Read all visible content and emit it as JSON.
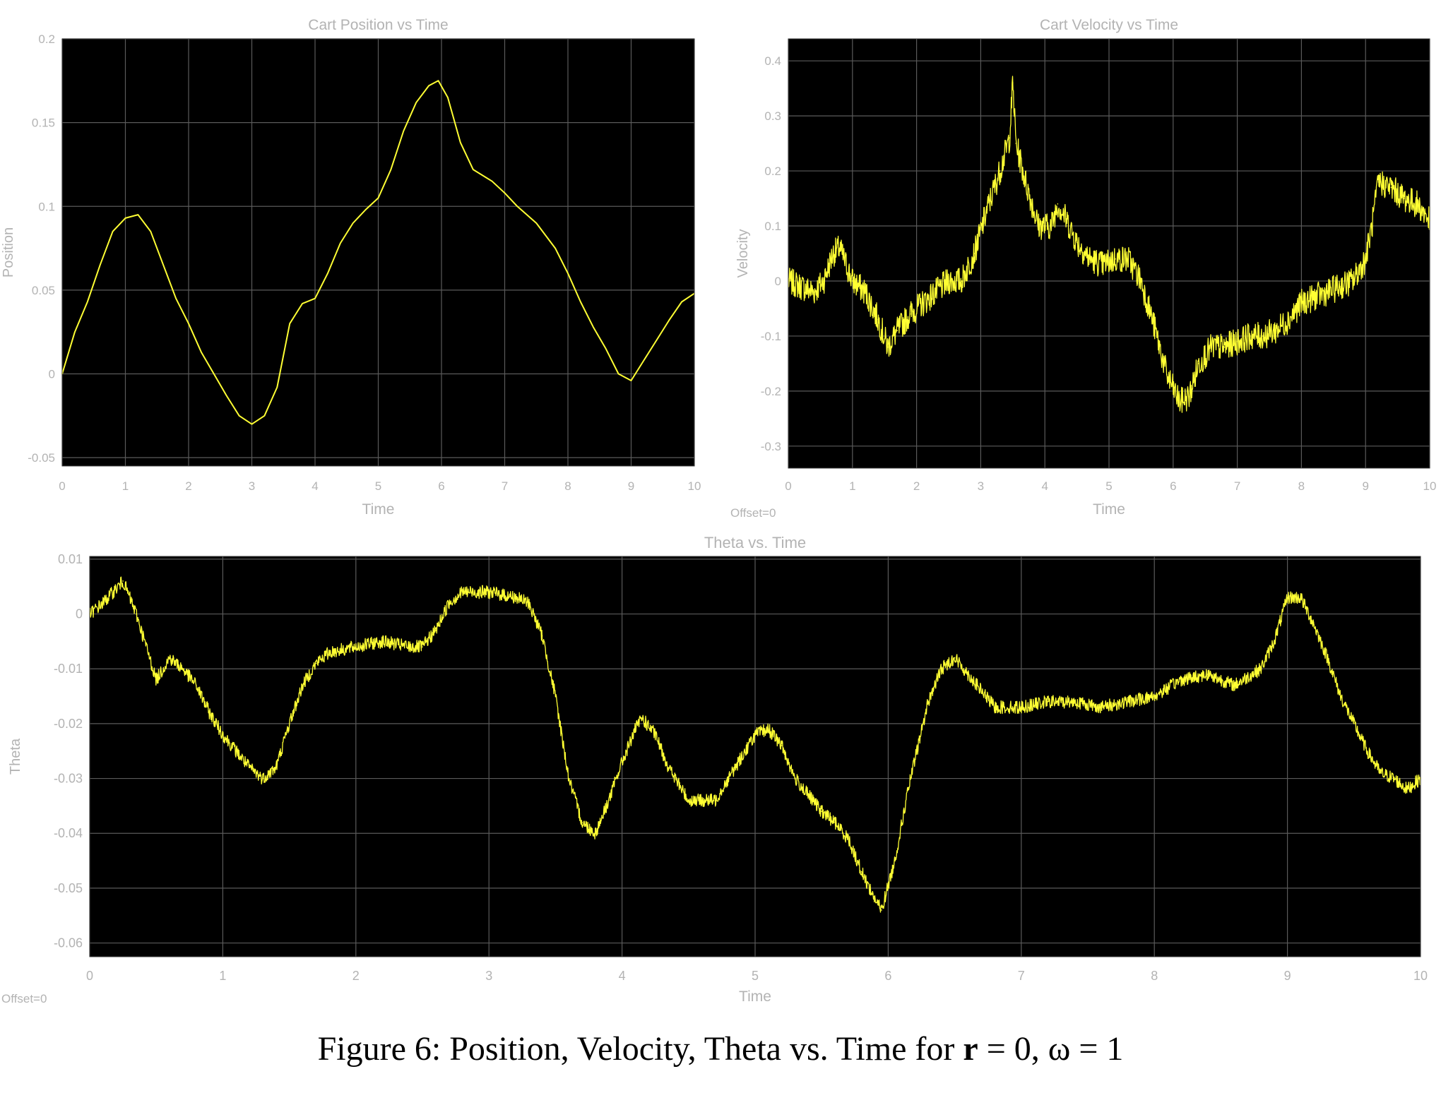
{
  "figure": {
    "caption_prefix": "Figure 6: Position, Velocity, Theta vs. Time for ",
    "caption_r": "r",
    "caption_suffix": " = 0, ω = 1"
  },
  "colors": {
    "plot_bg": "#000000",
    "grid": "#5a5a5a",
    "trace": "#ffff33",
    "label": "#b3b3b3"
  },
  "chart_data": [
    {
      "type": "line",
      "title": "Cart Position vs Time",
      "xlabel": "Time",
      "ylabel": "Position",
      "offset_label": "",
      "xlim": [
        0,
        10
      ],
      "ylim": [
        -0.055,
        0.2
      ],
      "xticks": [
        0,
        1,
        2,
        3,
        4,
        5,
        6,
        7,
        8,
        9,
        10
      ],
      "yticks": [
        -0.05,
        0,
        0.05,
        0.1,
        0.15,
        0.2
      ],
      "ytick_labels": [
        "-0.05",
        "0",
        "0.05",
        "0.1",
        "0.15",
        "0.2"
      ],
      "grid": true,
      "series": [
        {
          "x": [
            0,
            0.2,
            0.4,
            0.6,
            0.8,
            1.0,
            1.2,
            1.4,
            1.6,
            1.8,
            2.0,
            2.2,
            2.4,
            2.6,
            2.8,
            3.0,
            3.2,
            3.4,
            3.6,
            3.8,
            4.0,
            4.2,
            4.4,
            4.6,
            4.8,
            5.0,
            5.2,
            5.4,
            5.6,
            5.8,
            5.95,
            6.1,
            6.3,
            6.5,
            6.8,
            7.0,
            7.2,
            7.5,
            7.8,
            8.0,
            8.2,
            8.4,
            8.6,
            8.8,
            9.0,
            9.2,
            9.4,
            9.6,
            9.8,
            10.0
          ],
          "y": [
            0,
            0.025,
            0.043,
            0.065,
            0.085,
            0.093,
            0.095,
            0.085,
            0.065,
            0.045,
            0.03,
            0.013,
            0,
            -0.013,
            -0.025,
            -0.03,
            -0.025,
            -0.008,
            0.03,
            0.042,
            0.045,
            0.06,
            0.078,
            0.09,
            0.098,
            0.105,
            0.122,
            0.145,
            0.162,
            0.172,
            0.175,
            0.165,
            0.138,
            0.122,
            0.115,
            0.108,
            0.1,
            0.09,
            0.075,
            0.06,
            0.043,
            0.028,
            0.015,
            0,
            -0.004,
            0.008,
            0.02,
            0.032,
            0.043,
            0.048
          ]
        }
      ]
    },
    {
      "type": "line",
      "title": "Cart Velocity vs Time",
      "xlabel": "Time",
      "ylabel": "Velocity",
      "offset_label": "Offset=0",
      "xlim": [
        0,
        10
      ],
      "ylim": [
        -0.34,
        0.44
      ],
      "xticks": [
        0,
        1,
        2,
        3,
        4,
        5,
        6,
        7,
        8,
        9,
        10
      ],
      "yticks": [
        -0.3,
        -0.2,
        -0.1,
        0,
        0.1,
        0.2,
        0.3,
        0.4
      ],
      "ytick_labels": [
        "-0.3",
        "-0.2",
        "-0.1",
        "0",
        "0.1",
        "0.2",
        "0.3",
        "0.4"
      ],
      "grid": true,
      "series": [
        {
          "x": [
            0,
            0.2,
            0.4,
            0.55,
            0.7,
            0.8,
            1.0,
            1.2,
            1.4,
            1.55,
            1.7,
            1.9,
            2.1,
            2.3,
            2.5,
            2.7,
            2.9,
            3.1,
            3.3,
            3.45,
            3.5,
            3.55,
            3.7,
            3.9,
            4.1,
            4.2,
            4.3,
            4.5,
            4.7,
            4.9,
            5.1,
            5.3,
            5.5,
            5.7,
            5.9,
            6.1,
            6.25,
            6.4,
            6.6,
            6.8,
            7.0,
            7.2,
            7.4,
            7.6,
            7.8,
            8.0,
            8.2,
            8.4,
            8.6,
            8.8,
            9.0,
            9.1,
            9.2,
            9.4,
            9.6,
            9.8,
            10.0
          ],
          "y": [
            0.0,
            -0.01,
            -0.02,
            0.0,
            0.05,
            0.06,
            0.0,
            -0.02,
            -0.07,
            -0.12,
            -0.09,
            -0.06,
            -0.04,
            -0.02,
            0.0,
            0.0,
            0.05,
            0.13,
            0.2,
            0.26,
            0.36,
            0.25,
            0.18,
            0.1,
            0.1,
            0.14,
            0.12,
            0.07,
            0.04,
            0.03,
            0.04,
            0.04,
            0.0,
            -0.08,
            -0.17,
            -0.22,
            -0.21,
            -0.15,
            -0.12,
            -0.12,
            -0.11,
            -0.1,
            -0.1,
            -0.09,
            -0.07,
            -0.04,
            -0.03,
            -0.02,
            -0.01,
            0.0,
            0.04,
            0.1,
            0.18,
            0.17,
            0.15,
            0.14,
            0.11
          ],
          "noise": 0.025
        }
      ]
    },
    {
      "type": "line",
      "title": "Theta vs. Time",
      "xlabel": "Time",
      "ylabel": "Theta",
      "offset_label": "Offset=0",
      "xlim": [
        0,
        10
      ],
      "ylim": [
        -0.0625,
        0.0105
      ],
      "xticks": [
        0,
        1,
        2,
        3,
        4,
        5,
        6,
        7,
        8,
        9,
        10
      ],
      "yticks": [
        -0.06,
        -0.05,
        -0.04,
        -0.03,
        -0.02,
        -0.01,
        0,
        0.01
      ],
      "ytick_labels": [
        "-0.06",
        "-0.05",
        "-0.04",
        "-0.03",
        "-0.02",
        "-0.01",
        "0",
        "0.01"
      ],
      "grid": true,
      "series": [
        {
          "x": [
            0,
            0.1,
            0.25,
            0.35,
            0.45,
            0.5,
            0.6,
            0.7,
            0.8,
            0.9,
            1.0,
            1.1,
            1.2,
            1.3,
            1.4,
            1.5,
            1.6,
            1.7,
            1.8,
            2.0,
            2.2,
            2.4,
            2.5,
            2.6,
            2.7,
            2.8,
            3.0,
            3.2,
            3.3,
            3.4,
            3.5,
            3.6,
            3.7,
            3.8,
            3.9,
            4.0,
            4.1,
            4.15,
            4.25,
            4.35,
            4.5,
            4.7,
            4.8,
            4.9,
            5.0,
            5.1,
            5.2,
            5.3,
            5.5,
            5.6,
            5.7,
            5.8,
            5.9,
            5.95,
            6.05,
            6.15,
            6.3,
            6.4,
            6.5,
            6.6,
            6.8,
            7.0,
            7.2,
            7.4,
            7.6,
            7.8,
            8.0,
            8.2,
            8.4,
            8.6,
            8.8,
            8.9,
            9.0,
            9.1,
            9.2,
            9.3,
            9.4,
            9.5,
            9.6,
            9.7,
            9.8,
            9.9,
            10.0
          ],
          "y": [
            0,
            0.002,
            0.006,
            0.0,
            -0.008,
            -0.012,
            -0.008,
            -0.01,
            -0.013,
            -0.018,
            -0.022,
            -0.025,
            -0.028,
            -0.03,
            -0.028,
            -0.02,
            -0.013,
            -0.009,
            -0.007,
            -0.006,
            -0.005,
            -0.006,
            -0.006,
            -0.003,
            0.002,
            0.004,
            0.004,
            0.003,
            0.002,
            -0.004,
            -0.015,
            -0.03,
            -0.038,
            -0.04,
            -0.034,
            -0.027,
            -0.021,
            -0.019,
            -0.022,
            -0.028,
            -0.034,
            -0.034,
            -0.03,
            -0.026,
            -0.022,
            -0.021,
            -0.024,
            -0.03,
            -0.036,
            -0.038,
            -0.041,
            -0.047,
            -0.052,
            -0.054,
            -0.045,
            -0.032,
            -0.016,
            -0.01,
            -0.008,
            -0.011,
            -0.017,
            -0.017,
            -0.016,
            -0.016,
            -0.017,
            -0.016,
            -0.015,
            -0.012,
            -0.011,
            -0.013,
            -0.01,
            -0.005,
            0.003,
            0.003,
            -0.002,
            -0.008,
            -0.015,
            -0.02,
            -0.025,
            -0.029,
            -0.03,
            -0.032,
            -0.03
          ],
          "noise": 0.0012
        }
      ]
    }
  ]
}
